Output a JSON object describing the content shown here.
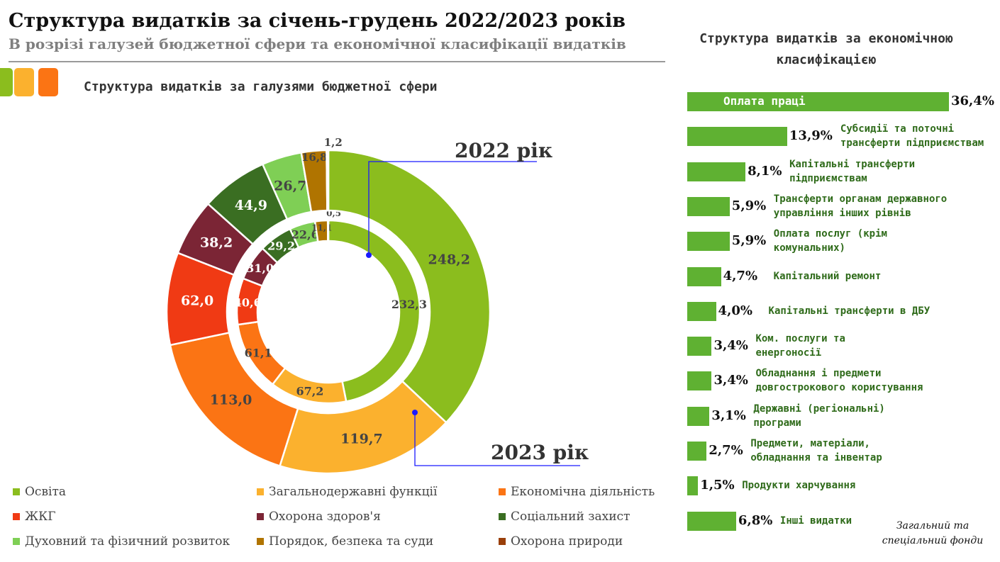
{
  "header": {
    "title": "Структура видатків за січень-грудень 2022/2023 років",
    "subtitle": "В розрізі галузей бюджетної сфери та економічної класифікації видатків"
  },
  "colors": {
    "squares": [
      "#8bbd1e",
      "#fbb12e",
      "#fb7414"
    ],
    "bar": "#5fb132"
  },
  "chart_data": [
    {
      "type": "donut",
      "title": "Структура видатків за галузями бюджетної сфери",
      "categories": [
        "Освіта",
        "Загальнодержавні функції",
        "Економічна діяльність",
        "ЖКГ",
        "Охорона здоров'я",
        "Соціальний захист",
        "Духовний та фізичний розвиток",
        "Порядок, безпека та суди",
        "Охорона природи"
      ],
      "colors": [
        "#8bbd1e",
        "#fbb12e",
        "#fb7414",
        "#f03a14",
        "#7b2535",
        "#3a6e22",
        "#7fcf55",
        "#b07400",
        "#9a3f0a"
      ],
      "series": [
        {
          "name": "2022 рік",
          "ring": "inner",
          "values": [
            232.3,
            67.2,
            61.1,
            40.6,
            31.0,
            29.2,
            22.6,
            11.1,
            0.5
          ],
          "labels": [
            "232,3",
            "67,2",
            "61,1",
            "40,6",
            "31,0",
            "29,2",
            "22,6",
            "11,1",
            "0,5"
          ]
        },
        {
          "name": "2023 рік",
          "ring": "outer",
          "values": [
            248.2,
            119.7,
            113.0,
            62.0,
            38.2,
            44.9,
            26.7,
            16.8,
            1.2
          ],
          "labels": [
            "248,2",
            "119,7",
            "113,0",
            "62,0",
            "38,2",
            "44,9",
            "26,7",
            "16,8",
            "1,2"
          ]
        }
      ],
      "legend": "bottom"
    },
    {
      "type": "bar",
      "orientation": "horizontal",
      "title": "Структура видатків за економічною класифікацією",
      "categories": [
        "Оплата праці",
        "Субсидії та поточні трансферти підприємствам",
        "Капітальні трансферти підприємствам",
        "Трансферти органам державного управління інших рівнів",
        "Оплата послуг (крім комунальних)",
        "Капітальний ремонт",
        "Капітальні трансферти в ДБУ",
        "Ком. послуги та енергоносії",
        "Обладнання і предмети довгострокового користування",
        "Державні (регіональні) програми",
        "Предмети, матеріали, обладнання та інвентар",
        "Продукти харчування",
        "Інші видатки"
      ],
      "lines": [
        [
          "Оплата праці"
        ],
        [
          "Субсидії та поточні",
          "трансферти підприємствам"
        ],
        [
          "Капітальні трансферти",
          "підприємствам"
        ],
        [
          "Трансферти органам державного",
          "управління інших рівнів"
        ],
        [
          "Оплата послуг (крім",
          "комунальних)"
        ],
        [
          "Капітальний ремонт"
        ],
        [
          "Капітальні трансферти в ДБУ"
        ],
        [
          "Ком. послуги та",
          "енергоносії"
        ],
        [
          "Обладнання і предмети",
          "довгострокового користування"
        ],
        [
          "Державні (регіональні)",
          "програми"
        ],
        [
          "Предмети, матеріали,",
          "обладнання та інвентар"
        ],
        [
          "Продукти харчування"
        ],
        [
          "Інші видатки"
        ]
      ],
      "values": [
        36.4,
        13.9,
        8.1,
        5.9,
        5.9,
        4.7,
        4.0,
        3.4,
        3.4,
        3.1,
        2.7,
        1.5,
        6.8
      ],
      "labels": [
        "36,4%",
        "13,9%",
        "8,1%",
        "5,9%",
        "5,9%",
        "4,7%",
        "4,0%",
        "3,4%",
        "3,4%",
        "3,1%",
        "2,7%",
        "1,5%",
        "6,8%"
      ],
      "note": [
        "Загальний та",
        "спеціальний фонди"
      ]
    }
  ]
}
